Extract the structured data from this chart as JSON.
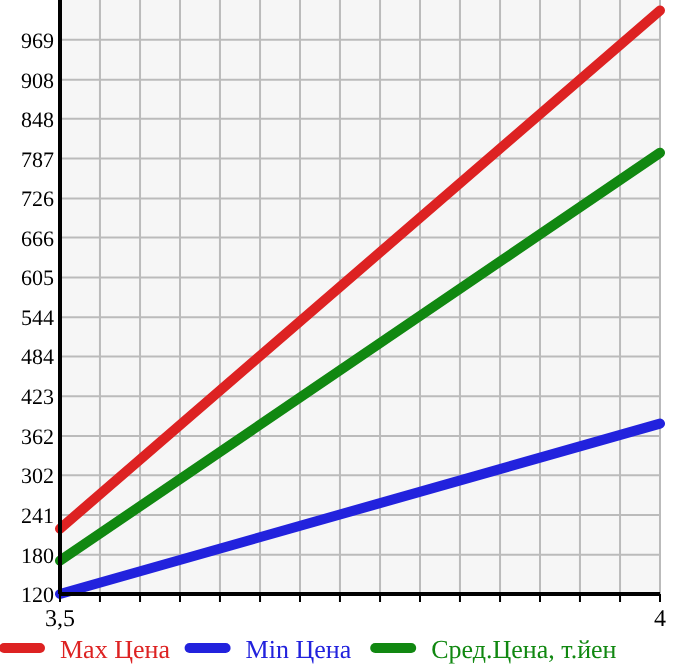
{
  "chart_data": {
    "type": "line",
    "x": [
      3.5,
      4
    ],
    "series": [
      {
        "name": "Max Цена",
        "color": "#dd2222",
        "values": [
          220,
          1014
        ]
      },
      {
        "name": "Min Цена",
        "color": "#2222dd",
        "values": [
          120,
          381
        ]
      },
      {
        "name": "Сред.Цена, т.йен",
        "color": "#118811",
        "values": [
          171,
          796
        ]
      }
    ],
    "xlim": [
      3.5,
      4
    ],
    "xticks": [
      {
        "value": 3.5,
        "label": "3,5"
      },
      {
        "value": 3.5333,
        "label": null
      },
      {
        "value": 3.5667,
        "label": null
      },
      {
        "value": 3.6,
        "label": null
      },
      {
        "value": 3.6333,
        "label": null
      },
      {
        "value": 3.6667,
        "label": null
      },
      {
        "value": 3.7,
        "label": null
      },
      {
        "value": 3.7333,
        "label": null
      },
      {
        "value": 3.7667,
        "label": null
      },
      {
        "value": 3.8,
        "label": null
      },
      {
        "value": 3.8333,
        "label": null
      },
      {
        "value": 3.8667,
        "label": null
      },
      {
        "value": 3.9,
        "label": null
      },
      {
        "value": 3.9333,
        "label": null
      },
      {
        "value": 3.9667,
        "label": null
      },
      4
    ],
    "ylim": [
      120,
      1030
    ],
    "yticks": [
      120,
      180,
      241,
      302,
      362,
      423,
      484,
      544,
      605,
      666,
      726,
      787,
      848,
      908,
      969
    ],
    "grid": true,
    "legend": "bottom",
    "marker": "none",
    "line_style": "solid"
  }
}
